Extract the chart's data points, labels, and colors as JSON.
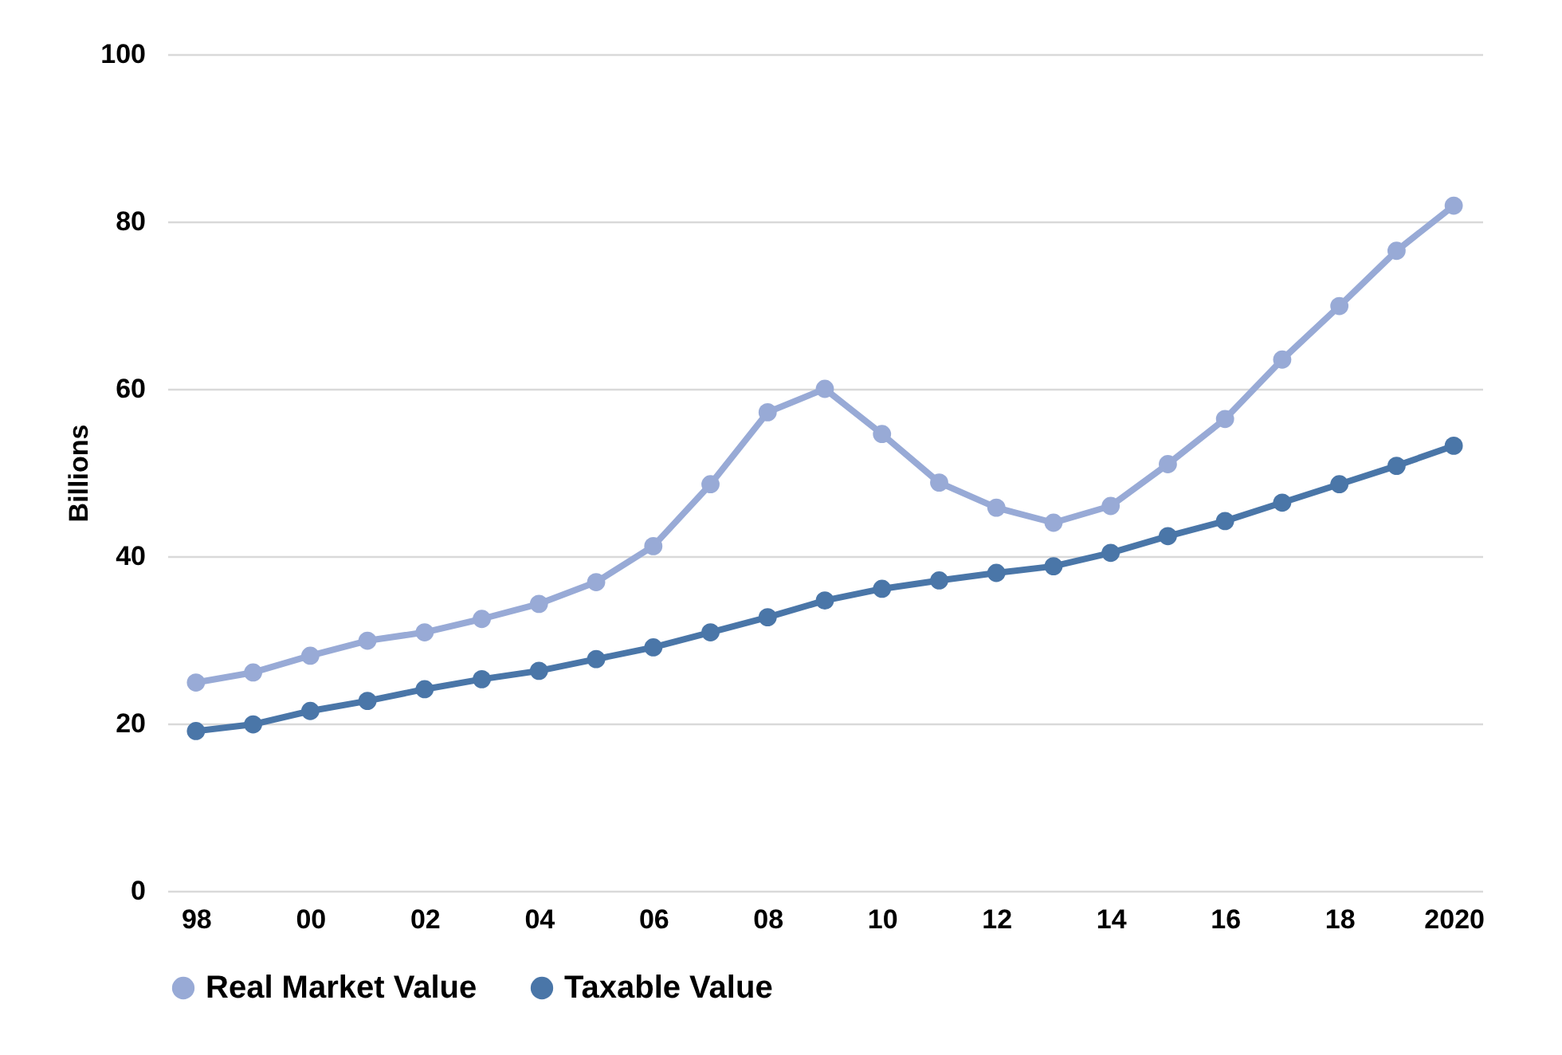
{
  "chart_data": {
    "type": "line",
    "ylabel": "Billions",
    "categories": [
      "98",
      null,
      "00",
      null,
      "02",
      null,
      "04",
      null,
      "06",
      null,
      "08",
      null,
      "10",
      null,
      "12",
      null,
      "14",
      null,
      "16",
      null,
      "18",
      null,
      "2020"
    ],
    "series": [
      {
        "name": "Real Market Value",
        "color": "#98aad6",
        "values": [
          24.9,
          26.1,
          28.1,
          29.9,
          30.9,
          32.5,
          34.3,
          36.9,
          41.2,
          48.6,
          57.2,
          60.0,
          54.6,
          48.8,
          45.8,
          44.0,
          46.0,
          51.0,
          56.4,
          63.5,
          69.9,
          76.5,
          81.9
        ]
      },
      {
        "name": "Taxable Value",
        "color": "#4a76a8",
        "values": [
          19.1,
          19.9,
          21.5,
          22.7,
          24.1,
          25.3,
          26.3,
          27.7,
          29.1,
          30.9,
          32.7,
          34.7,
          36.1,
          37.1,
          38.0,
          38.8,
          40.4,
          42.4,
          44.2,
          46.4,
          48.6,
          50.8,
          53.2
        ]
      }
    ],
    "ylim": [
      0,
      100
    ],
    "yticks": [
      0,
      20,
      40,
      60,
      80,
      100
    ],
    "grid": "y",
    "legend": "bottom",
    "marker": "circle",
    "line_style": "solid"
  }
}
